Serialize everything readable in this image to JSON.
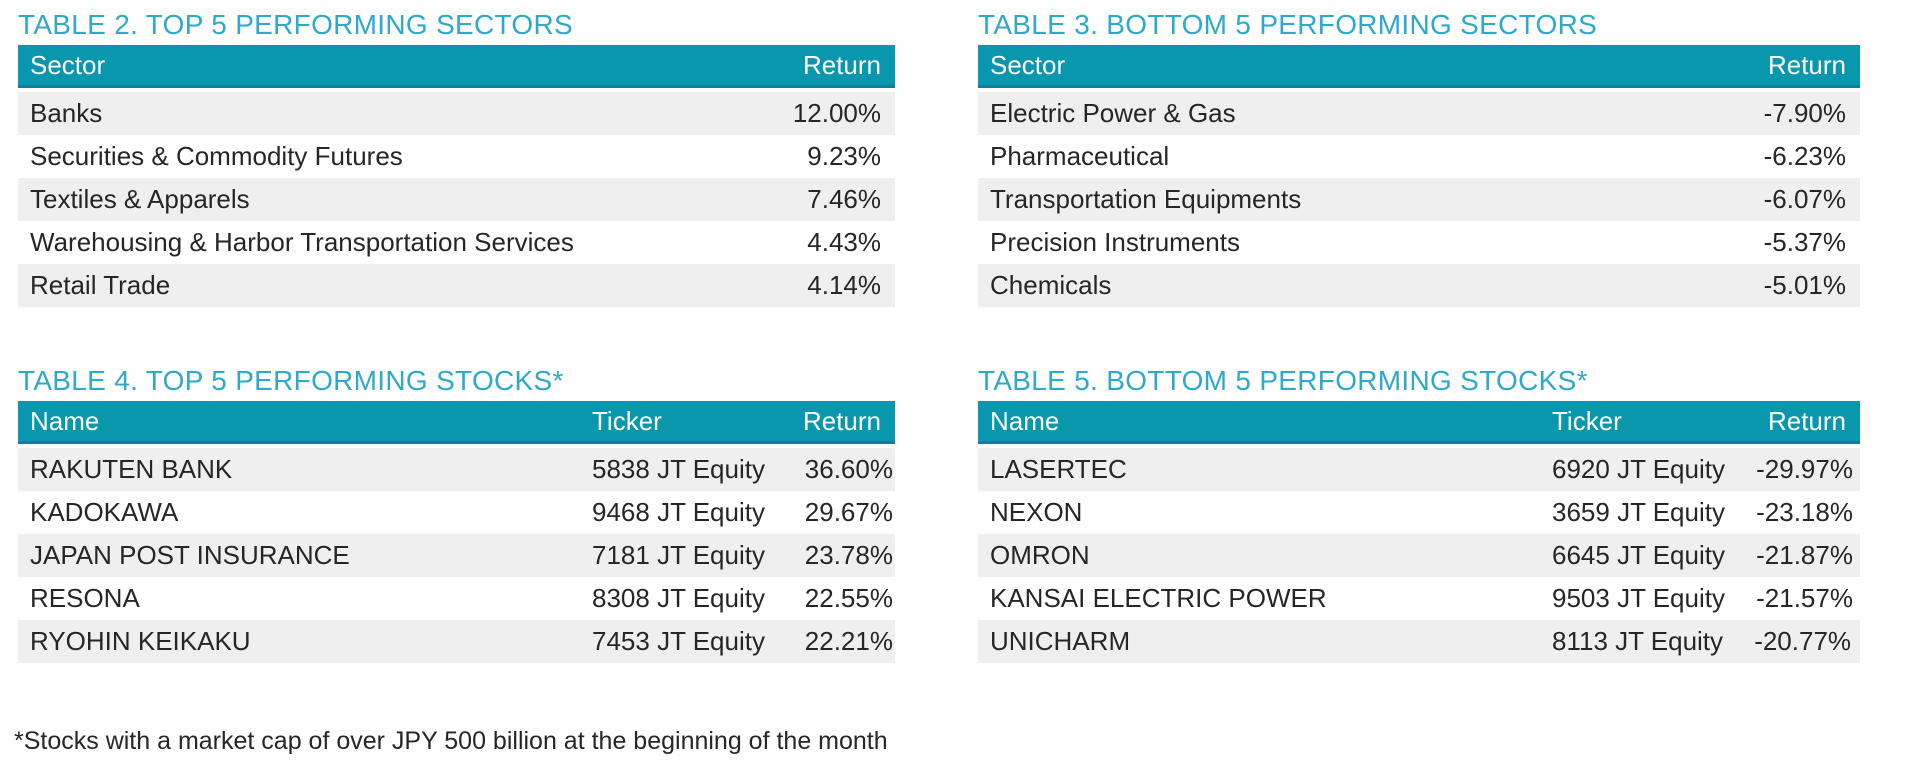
{
  "page": {
    "colors": {
      "title_accent": "#2fa9c9",
      "header_bg": "#0897ac",
      "header_border": "#0d7e9b",
      "row_alt_bg": "#f0efef",
      "body_text": "#262626"
    }
  },
  "tables": {
    "t2": {
      "title": "TABLE 2. TOP 5 PERFORMING SECTORS",
      "col_sector": "Sector",
      "col_return": "Return",
      "rows": [
        {
          "sector": "Banks",
          "return": "12.00%"
        },
        {
          "sector": "Securities & Commodity Futures",
          "return": "9.23%"
        },
        {
          "sector": "Textiles & Apparels",
          "return": "7.46%"
        },
        {
          "sector": "Warehousing & Harbor Transportation Services",
          "return": "4.43%"
        },
        {
          "sector": "Retail Trade",
          "return": "4.14%"
        }
      ]
    },
    "t3": {
      "title": "TABLE 3. BOTTOM 5 PERFORMING SECTORS",
      "col_sector": "Sector",
      "col_return": "Return",
      "rows": [
        {
          "sector": "Electric Power & Gas",
          "return": "-7.90%"
        },
        {
          "sector": "Pharmaceutical",
          "return": "-6.23%"
        },
        {
          "sector": "Transportation Equipments",
          "return": "-6.07%"
        },
        {
          "sector": "Precision Instruments",
          "return": "-5.37%"
        },
        {
          "sector": "Chemicals",
          "return": "-5.01%"
        }
      ]
    },
    "t4": {
      "title": "TABLE 4. TOP 5 PERFORMING STOCKS*",
      "col_name": "Name",
      "col_ticker": "Ticker",
      "col_return": "Return",
      "rows": [
        {
          "name": "RAKUTEN BANK",
          "ticker": "5838 JT Equity",
          "return": "36.60%"
        },
        {
          "name": "KADOKAWA",
          "ticker": "9468 JT Equity",
          "return": "29.67%"
        },
        {
          "name": "JAPAN POST INSURANCE",
          "ticker": "7181 JT Equity",
          "return": "23.78%"
        },
        {
          "name": "RESONA",
          "ticker": "8308 JT Equity",
          "return": "22.55%"
        },
        {
          "name": "RYOHIN KEIKAKU",
          "ticker": "7453 JT Equity",
          "return": "22.21%"
        }
      ]
    },
    "t5": {
      "title": "TABLE 5. BOTTOM 5 PERFORMING STOCKS*",
      "col_name": "Name",
      "col_ticker": "Ticker",
      "col_return": "Return",
      "rows": [
        {
          "name": "LASERTEC",
          "ticker": "6920 JT Equity",
          "return": "-29.97%"
        },
        {
          "name": "NEXON",
          "ticker": "3659 JT Equity",
          "return": "-23.18%"
        },
        {
          "name": "OMRON",
          "ticker": "6645 JT Equity",
          "return": "-21.87%"
        },
        {
          "name": "KANSAI ELECTRIC POWER",
          "ticker": "9503 JT Equity",
          "return": "-21.57%"
        },
        {
          "name": "UNICHARM",
          "ticker": "8113 JT Equity",
          "return": "-20.77%"
        }
      ]
    }
  },
  "footnote": "*Stocks with a market cap of over JPY 500 billion at the beginning of the month"
}
